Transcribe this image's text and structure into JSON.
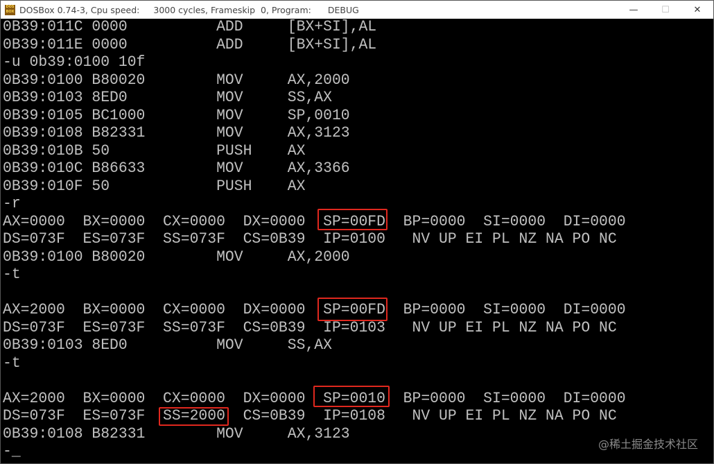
{
  "window": {
    "title_app": "DOSBox 0.74-3, Cpu speed:",
    "title_cycles": "3000 cycles, Frameskip  0, Program:",
    "title_program": "DEBUG",
    "icon_text": "DOS BOX",
    "minimize": "—",
    "maximize": "☐",
    "close": "✕"
  },
  "console": {
    "lines": [
      "0B39:011C 0000          ADD     [BX+SI],AL",
      "0B39:011E 0000          ADD     [BX+SI],AL",
      "-u 0b39:0100 10f",
      "0B39:0100 B80020        MOV     AX,2000",
      "0B39:0103 8ED0          MOV     SS,AX",
      "0B39:0105 BC1000        MOV     SP,0010",
      "0B39:0108 B82331        MOV     AX,3123",
      "0B39:010B 50            PUSH    AX",
      "0B39:010C B86633        MOV     AX,3366",
      "0B39:010F 50            PUSH    AX",
      "-r",
      "AX=0000  BX=0000  CX=0000  DX=0000  SP=00FD  BP=0000  SI=0000  DI=0000",
      "DS=073F  ES=073F  SS=073F  CS=0B39  IP=0100   NV UP EI PL NZ NA PO NC",
      "0B39:0100 B80020        MOV     AX,2000",
      "-t",
      "",
      "AX=2000  BX=0000  CX=0000  DX=0000  SP=00FD  BP=0000  SI=0000  DI=0000",
      "DS=073F  ES=073F  SS=073F  CS=0B39  IP=0103   NV UP EI PL NZ NA PO NC",
      "0B39:0103 8ED0          MOV     SS,AX",
      "-t",
      "",
      "AX=2000  BX=0000  CX=0000  DX=0000  SP=0010  BP=0000  SI=0000  DI=0000",
      "DS=073F  ES=073F  SS=2000  CS=0B39  IP=0108   NV UP EI PL NZ NA PO NC",
      "0B39:0108 B82331        MOV     AX,3123",
      "-_"
    ]
  },
  "highlight_color": "#e0281e",
  "watermark": "@稀土掘金技术社区"
}
